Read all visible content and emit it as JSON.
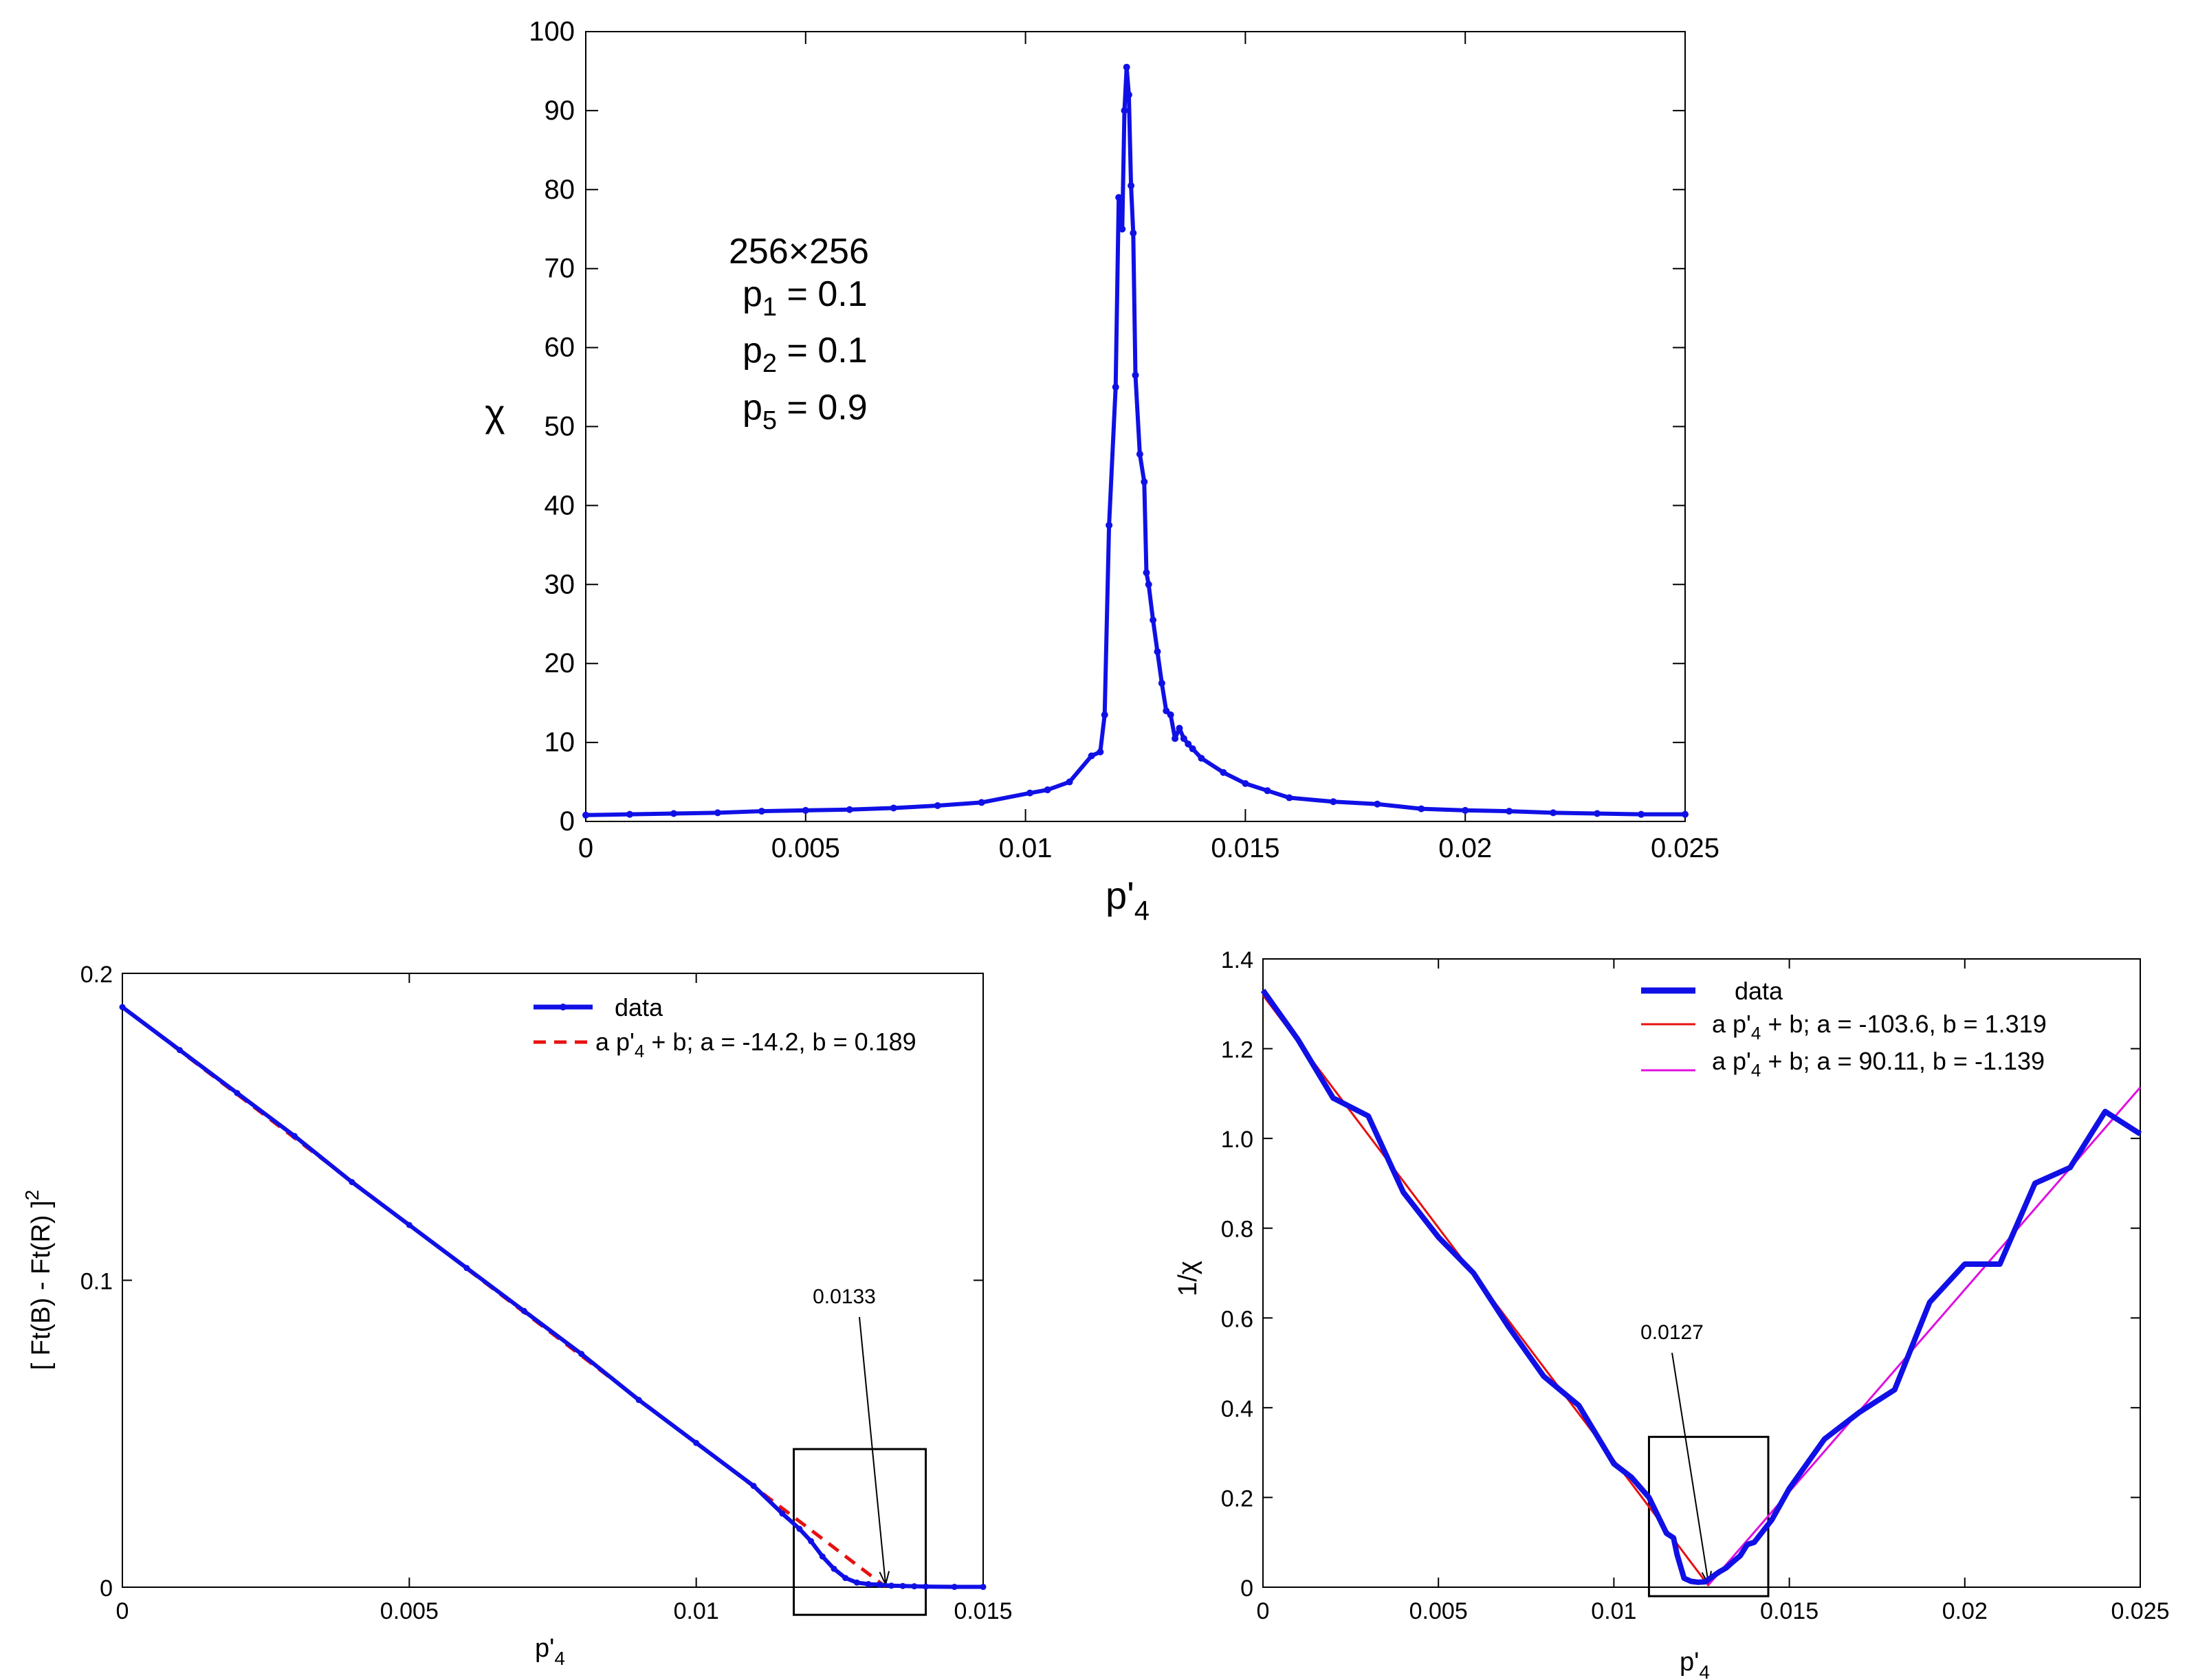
{
  "chart_data": [
    {
      "type": "line",
      "xlabel": "p'4",
      "ylabel": "χ",
      "xlim": [
        0,
        0.025
      ],
      "ylim": [
        0,
        100
      ],
      "x_ticks": [
        "0",
        "0.005",
        "0.01",
        "0.015",
        "0.02",
        "0.025"
      ],
      "y_ticks": [
        "0",
        "10",
        "20",
        "30",
        "40",
        "50",
        "60",
        "70",
        "80",
        "90",
        "100"
      ],
      "annotation_lines": [
        "256×256",
        "p1 = 0.1",
        "p2 = 0.1",
        "p5 = 0.9"
      ],
      "series": [
        {
          "color": "#1010e6",
          "x": [
            0,
            0.001,
            0.002,
            0.003,
            0.004,
            0.005,
            0.006,
            0.007,
            0.008,
            0.009,
            0.0101,
            0.0105,
            0.011,
            0.0115,
            0.0117,
            0.0118,
            0.0119,
            0.01205,
            0.01212,
            0.0122,
            0.01225,
            0.0123,
            0.01235,
            0.0124,
            0.01245,
            0.0125,
            0.0126,
            0.0127,
            0.01275,
            0.0128,
            0.0129,
            0.013,
            0.0131,
            0.0132,
            0.0133,
            0.0134,
            0.0135,
            0.0136,
            0.0137,
            0.0138,
            0.014,
            0.0145,
            0.015,
            0.0155,
            0.016,
            0.017,
            0.018,
            0.019,
            0.02,
            0.021,
            0.022,
            0.023,
            0.024,
            0.025
          ],
          "y": [
            0.8,
            0.9,
            1.0,
            1.1,
            1.3,
            1.4,
            1.5,
            1.7,
            2.0,
            2.4,
            3.6,
            4.0,
            5.0,
            8.3,
            8.8,
            13.5,
            37.5,
            55,
            79,
            75,
            90,
            95.5,
            92,
            80.5,
            74.5,
            56.5,
            46.5,
            43,
            31.5,
            30,
            25.5,
            21.5,
            17.5,
            14,
            13.5,
            10.5,
            11.8,
            10.5,
            9.8,
            9.2,
            8.0,
            6.2,
            4.8,
            3.9,
            3.0,
            2.5,
            2.2,
            1.6,
            1.4,
            1.3,
            1.1,
            1.0,
            0.9,
            0.9
          ]
        }
      ]
    },
    {
      "type": "line",
      "xlabel": "p'4",
      "ylabel": "[ Ft(B) - Ft(R) ]2",
      "xlim": [
        0,
        0.015
      ],
      "ylim": [
        0,
        0.2
      ],
      "x_ticks": [
        "0",
        "0.005",
        "0.01",
        "0.015"
      ],
      "y_ticks": [
        "0",
        "0.1",
        "0.2"
      ],
      "box": {
        "x": [
          0.0117,
          0.014
        ],
        "y": [
          -0.009,
          0.045
        ]
      },
      "arrow_label": "0.0133",
      "arrow_target": [
        0.0133,
        0.0
      ],
      "series": [
        {
          "name": "data",
          "color": "#1010e6",
          "x": [
            0,
            0.001,
            0.002,
            0.003,
            0.004,
            0.005,
            0.006,
            0.007,
            0.008,
            0.009,
            0.01,
            0.011,
            0.0115,
            0.0118,
            0.012,
            0.0122,
            0.0124,
            0.0126,
            0.0128,
            0.013,
            0.0132,
            0.0134,
            0.0136,
            0.0138,
            0.014,
            0.0145,
            0.015
          ],
          "y": [
            0.189,
            0.175,
            0.161,
            0.147,
            0.132,
            0.118,
            0.104,
            0.09,
            0.076,
            0.061,
            0.047,
            0.033,
            0.024,
            0.019,
            0.015,
            0.01,
            0.006,
            0.003,
            0.0015,
            0.001,
            0.0008,
            0.0005,
            0.0004,
            0.0003,
            0.0002,
            0.0001,
            0.0001
          ]
        },
        {
          "name": "a p'4 + b;  a = -14.2,  b = 0.189",
          "color": "#e81010",
          "dashed": true,
          "fit": {
            "a": -14.2,
            "b": 0.189,
            "x_range": [
              0,
              0.0133
            ]
          }
        }
      ]
    },
    {
      "type": "line",
      "xlabel": "p'4",
      "ylabel": "1/χ",
      "xlim": [
        0,
        0.025
      ],
      "ylim": [
        0,
        1.4
      ],
      "x_ticks": [
        "0",
        "0.005",
        "0.01",
        "0.015",
        "0.02",
        "0.025"
      ],
      "y_ticks": [
        "0",
        "0.2",
        "0.4",
        "0.6",
        "0.8",
        "1.0",
        "1.2",
        "1.4"
      ],
      "box": {
        "x": [
          0.011,
          0.0144
        ],
        "y": [
          -0.02,
          0.335
        ]
      },
      "arrow_label": "0.0127",
      "arrow_target": [
        0.0127,
        0.0
      ],
      "series": [
        {
          "name": "data",
          "color": "#1010e6",
          "x": [
            0,
            0.001,
            0.002,
            0.003,
            0.004,
            0.005,
            0.006,
            0.007,
            0.008,
            0.009,
            0.01,
            0.0105,
            0.011,
            0.0115,
            0.0117,
            0.0118,
            0.012,
            0.0122,
            0.0124,
            0.0126,
            0.0128,
            0.013,
            0.0132,
            0.0134,
            0.0136,
            0.0138,
            0.014,
            0.0145,
            0.015,
            0.016,
            0.017,
            0.018,
            0.019,
            0.02,
            0.021,
            0.022,
            0.023,
            0.024,
            0.025
          ],
          "y": [
            1.33,
            1.22,
            1.09,
            1.05,
            0.88,
            0.78,
            0.7,
            0.58,
            0.47,
            0.405,
            0.275,
            0.245,
            0.2,
            0.12,
            0.11,
            0.073,
            0.02,
            0.013,
            0.011,
            0.012,
            0.023,
            0.034,
            0.043,
            0.057,
            0.07,
            0.095,
            0.1,
            0.15,
            0.22,
            0.33,
            0.39,
            0.44,
            0.635,
            0.72,
            0.72,
            0.9,
            0.935,
            1.06,
            1.01
          ]
        },
        {
          "name": "a p'4 + b;  a = -103.6,   b =  1.319",
          "color": "#e81010",
          "fit": {
            "a": -103.6,
            "b": 1.319,
            "x_range": [
              0,
              0.0127
            ]
          }
        },
        {
          "name": "a p'4 + b;  a =   90.11,  b = -1.139",
          "color": "#e010e0",
          "fit": {
            "a": 90.11,
            "b": -1.139,
            "x_range": [
              0.0127,
              0.025
            ]
          }
        }
      ]
    }
  ]
}
